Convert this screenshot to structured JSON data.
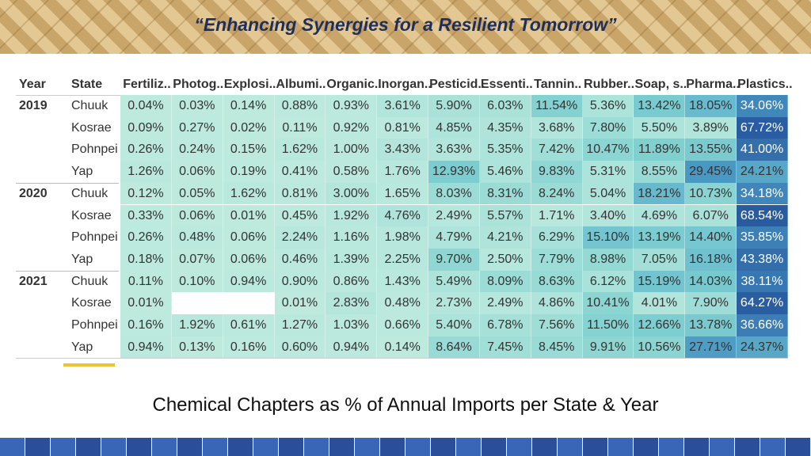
{
  "header": {
    "title": "“Enhancing Synergies for a Resilient Tomorrow”"
  },
  "table": {
    "columns": [
      "Year",
      "State",
      "Fertiliz..",
      "Photog..",
      "Explosi..",
      "Albumi..",
      "Organic..",
      "Inorgan..",
      "Pesticid..",
      "Essenti..",
      "Tannin..",
      "Rubber..",
      "Soap, s..",
      "Pharma..",
      "Plastics.."
    ],
    "groups": [
      {
        "year": "2019",
        "rows": [
          {
            "state": "Chuuk",
            "cells": [
              "0.04%",
              "0.03%",
              "0.14%",
              "0.88%",
              "0.93%",
              "3.61%",
              "5.90%",
              "6.03%",
              "11.54%",
              "5.36%",
              "13.42%",
              "18.05%",
              "34.06%"
            ]
          },
          {
            "state": "Kosrae",
            "cells": [
              "0.09%",
              "0.27%",
              "0.02%",
              "0.11%",
              "0.92%",
              "0.81%",
              "4.85%",
              "4.35%",
              "3.68%",
              "7.80%",
              "5.50%",
              "3.89%",
              "67.72%"
            ]
          },
          {
            "state": "Pohnpei",
            "cells": [
              "0.26%",
              "0.24%",
              "0.15%",
              "1.62%",
              "1.00%",
              "3.43%",
              "3.63%",
              "5.35%",
              "7.42%",
              "10.47%",
              "11.89%",
              "13.55%",
              "41.00%"
            ]
          },
          {
            "state": "Yap",
            "cells": [
              "1.26%",
              "0.06%",
              "0.19%",
              "0.41%",
              "0.58%",
              "1.76%",
              "12.93%",
              "5.46%",
              "9.83%",
              "5.31%",
              "8.55%",
              "29.45%",
              "24.21%"
            ]
          }
        ]
      },
      {
        "year": "2020",
        "rows": [
          {
            "state": "Chuuk",
            "cells": [
              "0.12%",
              "0.05%",
              "1.62%",
              "0.81%",
              "3.00%",
              "1.65%",
              "8.03%",
              "8.31%",
              "8.24%",
              "5.04%",
              "18.21%",
              "10.73%",
              "34.18%"
            ]
          },
          {
            "state": "Kosrae",
            "cells": [
              "0.33%",
              "0.06%",
              "0.01%",
              "0.45%",
              "1.92%",
              "4.76%",
              "2.49%",
              "5.57%",
              "1.71%",
              "3.40%",
              "4.69%",
              "6.07%",
              "68.54%"
            ]
          },
          {
            "state": "Pohnpei",
            "cells": [
              "0.26%",
              "0.48%",
              "0.06%",
              "2.24%",
              "1.16%",
              "1.98%",
              "4.79%",
              "4.21%",
              "6.29%",
              "15.10%",
              "13.19%",
              "14.40%",
              "35.85%"
            ]
          },
          {
            "state": "Yap",
            "cells": [
              "0.18%",
              "0.07%",
              "0.06%",
              "0.46%",
              "1.39%",
              "2.25%",
              "9.70%",
              "2.50%",
              "7.79%",
              "8.98%",
              "7.05%",
              "16.18%",
              "43.38%"
            ]
          }
        ]
      },
      {
        "year": "2021",
        "rows": [
          {
            "state": "Chuuk",
            "cells": [
              "0.11%",
              "0.10%",
              "0.94%",
              "0.90%",
              "0.86%",
              "1.43%",
              "5.49%",
              "8.09%",
              "8.63%",
              "6.12%",
              "15.19%",
              "14.03%",
              "38.11%"
            ]
          },
          {
            "state": "Kosrae",
            "cells": [
              "0.01%",
              null,
              null,
              "0.01%",
              "2.83%",
              "0.48%",
              "2.73%",
              "2.49%",
              "4.86%",
              "10.41%",
              "4.01%",
              "7.90%",
              "64.27%"
            ]
          },
          {
            "state": "Pohnpei",
            "cells": [
              "0.16%",
              "1.92%",
              "0.61%",
              "1.27%",
              "1.03%",
              "0.66%",
              "5.40%",
              "6.78%",
              "7.56%",
              "11.50%",
              "12.66%",
              "13.78%",
              "36.66%"
            ]
          },
          {
            "state": "Yap",
            "cells": [
              "0.94%",
              "0.13%",
              "0.16%",
              "0.60%",
              "0.94%",
              "0.14%",
              "8.64%",
              "7.45%",
              "8.45%",
              "9.91%",
              "10.56%",
              "27.71%",
              "24.37%"
            ]
          }
        ]
      }
    ]
  },
  "caption": "Chemical Chapters as % of Annual Imports per State & Year"
}
